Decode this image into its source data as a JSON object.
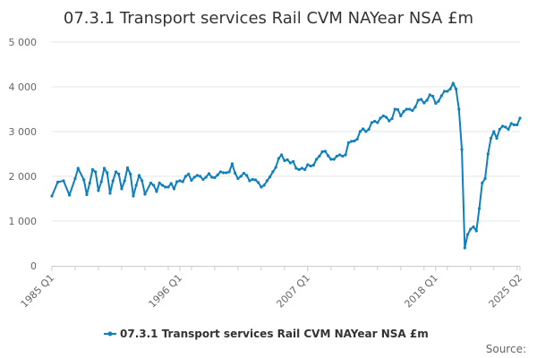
{
  "chart_data": {
    "type": "line",
    "title": "07.3.1 Transport services Rail CVM NAYear NSA £m",
    "xlabel": "",
    "ylabel": "",
    "ylim": [
      0,
      5000
    ],
    "y_ticks": [
      0,
      1000,
      2000,
      3000,
      4000,
      5000
    ],
    "y_tick_labels": [
      "0",
      "1 000",
      "2 000",
      "3 000",
      "4 000",
      "5 000"
    ],
    "x_range": [
      "1985 Q1",
      "2025 Q2"
    ],
    "x_tick_labels": [
      "1985 Q1",
      "1996 Q1",
      "2007 Q1",
      "2018 Q1",
      "2025 Q2"
    ],
    "grid": true,
    "legend_position": "bottom",
    "series": [
      {
        "name": "07.3.1 Transport services Rail CVM NAYear NSA £m",
        "color": "#0f7fbd",
        "points": [
          [
            "1985 Q1",
            1560
          ],
          [
            "1985 Q3",
            1870
          ],
          [
            "1986 Q1",
            1900
          ],
          [
            "1986 Q3",
            1580
          ],
          [
            "1987 Q1",
            1950
          ],
          [
            "1987 Q2",
            2180
          ],
          [
            "1987 Q4",
            1920
          ],
          [
            "1988 Q1",
            1590
          ],
          [
            "1988 Q2",
            1850
          ],
          [
            "1988 Q3",
            2150
          ],
          [
            "1988 Q4",
            2100
          ],
          [
            "1989 Q1",
            1680
          ],
          [
            "1989 Q2",
            1880
          ],
          [
            "1989 Q3",
            2180
          ],
          [
            "1989 Q4",
            2080
          ],
          [
            "1990 Q1",
            1620
          ],
          [
            "1990 Q2",
            1900
          ],
          [
            "1990 Q3",
            2100
          ],
          [
            "1990 Q4",
            2050
          ],
          [
            "1991 Q1",
            1720
          ],
          [
            "1991 Q2",
            1900
          ],
          [
            "1991 Q3",
            2190
          ],
          [
            "1991 Q4",
            2050
          ],
          [
            "1992 Q1",
            1560
          ],
          [
            "1992 Q2",
            1800
          ],
          [
            "1992 Q3",
            2020
          ],
          [
            "1992 Q4",
            1900
          ],
          [
            "1993 Q1",
            1600
          ],
          [
            "1993 Q3",
            1850
          ],
          [
            "1993 Q4",
            1800
          ],
          [
            "1994 Q1",
            1660
          ],
          [
            "1994 Q2",
            1850
          ],
          [
            "1994 Q3",
            1800
          ],
          [
            "1994 Q4",
            1760
          ],
          [
            "1995 Q1",
            1760
          ],
          [
            "1995 Q2",
            1840
          ],
          [
            "1995 Q3",
            1720
          ],
          [
            "1995 Q4",
            1880
          ],
          [
            "1996 Q1",
            1900
          ],
          [
            "1996 Q2",
            1880
          ],
          [
            "1996 Q3",
            2000
          ],
          [
            "1996 Q4",
            2050
          ],
          [
            "1997 Q1",
            1910
          ],
          [
            "1997 Q2",
            1980
          ],
          [
            "1997 Q3",
            2020
          ],
          [
            "1997 Q4",
            2000
          ],
          [
            "1998 Q1",
            1930
          ],
          [
            "1998 Q2",
            1980
          ],
          [
            "1998 Q3",
            2060
          ],
          [
            "1998 Q4",
            1980
          ],
          [
            "1999 Q1",
            1970
          ],
          [
            "1999 Q2",
            2030
          ],
          [
            "1999 Q3",
            2100
          ],
          [
            "1999 Q4",
            2080
          ],
          [
            "2000 Q1",
            2080
          ],
          [
            "2000 Q2",
            2100
          ],
          [
            "2000 Q3",
            2280
          ],
          [
            "2000 Q4",
            2070
          ],
          [
            "2001 Q1",
            1950
          ],
          [
            "2001 Q2",
            2000
          ],
          [
            "2001 Q3",
            2070
          ],
          [
            "2001 Q4",
            2020
          ],
          [
            "2002 Q1",
            1900
          ],
          [
            "2002 Q2",
            1930
          ],
          [
            "2002 Q3",
            1920
          ],
          [
            "2002 Q4",
            1860
          ],
          [
            "2003 Q1",
            1760
          ],
          [
            "2003 Q2",
            1800
          ],
          [
            "2003 Q3",
            1900
          ],
          [
            "2003 Q4",
            1990
          ],
          [
            "2004 Q1",
            2100
          ],
          [
            "2004 Q2",
            2200
          ],
          [
            "2004 Q3",
            2400
          ],
          [
            "2004 Q4",
            2480
          ],
          [
            "2005 Q1",
            2350
          ],
          [
            "2005 Q2",
            2370
          ],
          [
            "2005 Q3",
            2300
          ],
          [
            "2005 Q4",
            2330
          ],
          [
            "2006 Q1",
            2180
          ],
          [
            "2006 Q2",
            2150
          ],
          [
            "2006 Q3",
            2180
          ],
          [
            "2006 Q4",
            2150
          ],
          [
            "2007 Q1",
            2260
          ],
          [
            "2007 Q2",
            2230
          ],
          [
            "2007 Q3",
            2250
          ],
          [
            "2007 Q4",
            2380
          ],
          [
            "2008 Q1",
            2450
          ],
          [
            "2008 Q2",
            2550
          ],
          [
            "2008 Q3",
            2560
          ],
          [
            "2008 Q4",
            2460
          ],
          [
            "2009 Q1",
            2380
          ],
          [
            "2009 Q2",
            2380
          ],
          [
            "2009 Q3",
            2450
          ],
          [
            "2009 Q4",
            2480
          ],
          [
            "2010 Q1",
            2450
          ],
          [
            "2010 Q2",
            2480
          ],
          [
            "2010 Q3",
            2750
          ],
          [
            "2010 Q4",
            2780
          ],
          [
            "2011 Q1",
            2790
          ],
          [
            "2011 Q2",
            2830
          ],
          [
            "2011 Q3",
            3000
          ],
          [
            "2011 Q4",
            3060
          ],
          [
            "2012 Q1",
            3000
          ],
          [
            "2012 Q2",
            3050
          ],
          [
            "2012 Q3",
            3200
          ],
          [
            "2012 Q4",
            3230
          ],
          [
            "2013 Q1",
            3200
          ],
          [
            "2013 Q2",
            3300
          ],
          [
            "2013 Q3",
            3350
          ],
          [
            "2013 Q4",
            3320
          ],
          [
            "2014 Q1",
            3240
          ],
          [
            "2014 Q2",
            3290
          ],
          [
            "2014 Q3",
            3500
          ],
          [
            "2014 Q4",
            3490
          ],
          [
            "2015 Q1",
            3350
          ],
          [
            "2015 Q2",
            3450
          ],
          [
            "2015 Q3",
            3500
          ],
          [
            "2015 Q4",
            3500
          ],
          [
            "2016 Q1",
            3470
          ],
          [
            "2016 Q2",
            3550
          ],
          [
            "2016 Q3",
            3700
          ],
          [
            "2016 Q4",
            3720
          ],
          [
            "2017 Q1",
            3640
          ],
          [
            "2017 Q2",
            3700
          ],
          [
            "2017 Q3",
            3820
          ],
          [
            "2017 Q4",
            3790
          ],
          [
            "2018 Q1",
            3630
          ],
          [
            "2018 Q2",
            3680
          ],
          [
            "2018 Q3",
            3800
          ],
          [
            "2018 Q4",
            3900
          ],
          [
            "2019 Q1",
            3900
          ],
          [
            "2019 Q2",
            3950
          ],
          [
            "2019 Q3",
            4080
          ],
          [
            "2019 Q4",
            3950
          ],
          [
            "2020 Q1",
            3500
          ],
          [
            "2020 Q2",
            2600
          ],
          [
            "2020 Q3",
            400
          ],
          [
            "2020 Q4",
            700
          ],
          [
            "2021 Q1",
            820
          ],
          [
            "2021 Q2",
            870
          ],
          [
            "2021 Q3",
            780
          ],
          [
            "2021 Q4",
            1280
          ],
          [
            "2022 Q1",
            1850
          ],
          [
            "2022 Q2",
            1950
          ],
          [
            "2022 Q3",
            2500
          ],
          [
            "2022 Q4",
            2850
          ],
          [
            "2023 Q1",
            3000
          ],
          [
            "2023 Q2",
            2850
          ],
          [
            "2023 Q3",
            3050
          ],
          [
            "2023 Q4",
            3120
          ],
          [
            "2024 Q1",
            3100
          ],
          [
            "2024 Q2",
            3050
          ],
          [
            "2024 Q3",
            3180
          ],
          [
            "2024 Q4",
            3150
          ],
          [
            "2025 Q1",
            3150
          ],
          [
            "2025 Q2",
            3300
          ]
        ]
      }
    ],
    "source_label": "Source:"
  }
}
